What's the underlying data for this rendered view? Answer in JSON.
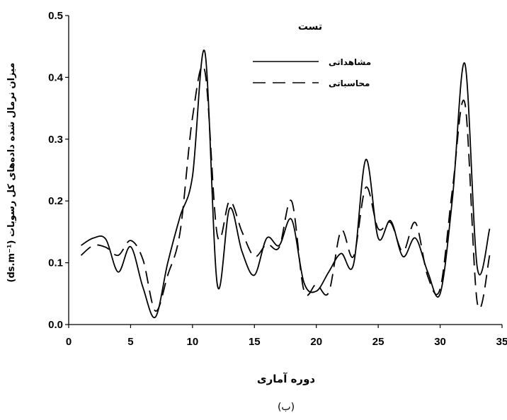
{
  "chart_data": {
    "type": "line",
    "xlabel": "دوره آماری",
    "ylabel": "(ds.m⁻¹) میزان نرمال شده داده‌های کل رسوبات",
    "caption": "(ب)",
    "legend_title": "تست",
    "legend_position": "top-right",
    "xlim": [
      0,
      35
    ],
    "ylim": [
      0,
      0.5
    ],
    "xticks": [
      0,
      5,
      10,
      15,
      20,
      25,
      30,
      35
    ],
    "yticks": [
      0.0,
      0.1,
      0.2,
      0.3,
      0.4,
      0.5
    ],
    "ytick_labels": [
      "0.0",
      "0.1",
      "0.2",
      "0.3",
      "0.4",
      "0.5"
    ],
    "grid": false,
    "series": [
      {
        "name": "مشاهداتی",
        "style": "solid",
        "color": "#000000",
        "x": [
          1,
          2,
          3,
          4,
          5,
          6,
          7,
          8,
          9,
          10,
          11,
          12,
          13,
          14,
          15,
          16,
          17,
          18,
          19,
          20,
          21,
          22,
          23,
          24,
          25,
          26,
          27,
          28,
          29,
          30,
          31,
          32,
          33,
          34
        ],
        "y": [
          0.128,
          0.14,
          0.138,
          0.085,
          0.126,
          0.06,
          0.012,
          0.1,
          0.175,
          0.24,
          0.441,
          0.065,
          0.188,
          0.118,
          0.08,
          0.14,
          0.128,
          0.17,
          0.068,
          0.054,
          0.085,
          0.115,
          0.097,
          0.267,
          0.14,
          0.168,
          0.11,
          0.14,
          0.085,
          0.05,
          0.205,
          0.422,
          0.092,
          0.155
        ]
      },
      {
        "name": "محاسباتی",
        "style": "dashed",
        "color": "#000000",
        "x": [
          1,
          2,
          3,
          4,
          5,
          6,
          7,
          8,
          9,
          10,
          11,
          12,
          13,
          14,
          15,
          16,
          17,
          18,
          19,
          20,
          21,
          22,
          23,
          24,
          25,
          26,
          27,
          28,
          29,
          30,
          31,
          32,
          33,
          34
        ],
        "y": [
          0.112,
          0.128,
          0.125,
          0.112,
          0.136,
          0.105,
          0.022,
          0.08,
          0.15,
          0.335,
          0.41,
          0.145,
          0.2,
          0.15,
          0.11,
          0.13,
          0.125,
          0.2,
          0.055,
          0.065,
          0.052,
          0.152,
          0.11,
          0.222,
          0.155,
          0.165,
          0.118,
          0.165,
          0.078,
          0.058,
          0.22,
          0.358,
          0.035,
          0.112
        ]
      }
    ]
  }
}
